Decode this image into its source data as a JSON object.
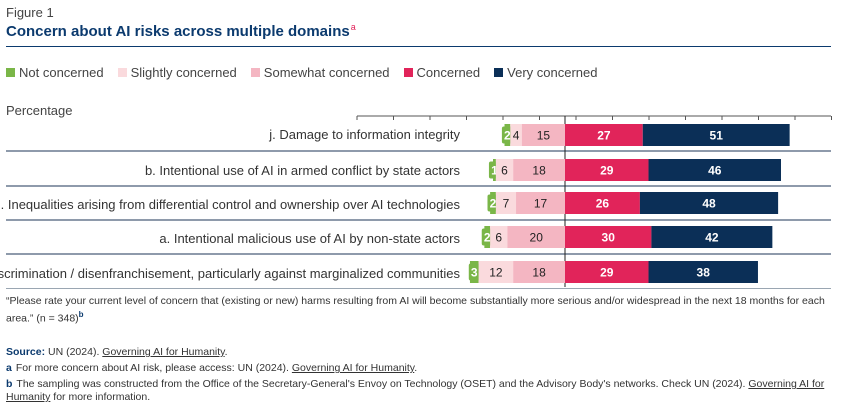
{
  "figure_label": "Figure 1",
  "title": "Concern about AI risks across multiple domains",
  "title_sup": "a",
  "axis_label": "Percentage",
  "legend": [
    {
      "label": "Not concerned",
      "color": "#7ab648"
    },
    {
      "label": "Slightly concerned",
      "color": "#fadadd"
    },
    {
      "label": "Somewhat concerned",
      "color": "#f4b6c2"
    },
    {
      "label": "Concerned",
      "color": "#e1245a"
    },
    {
      "label": "Very concerned",
      "color": "#0b2f57"
    }
  ],
  "chart_data": {
    "type": "bar",
    "orientation": "horizontal-diverging-stacked",
    "title": "Concern about AI risks across multiple domains",
    "ylabel": "Percentage",
    "categories": [
      "j. Damage to information integrity",
      "b. Intentional use of AI in armed conflict by state actors",
      "h. Inequalities arising from differential control and ownership over AI technologies",
      "a. Intentional malicious use of AI by non-state actors",
      "l. Discrimination / disenfranchisement, particularly against marginalized communities"
    ],
    "series": [
      {
        "name": "Not concerned",
        "values": [
          2,
          1,
          2,
          2,
          3
        ]
      },
      {
        "name": "Slightly concerned",
        "values": [
          4,
          6,
          7,
          6,
          12
        ]
      },
      {
        "name": "Somewhat concerned",
        "values": [
          15,
          18,
          17,
          20,
          18
        ]
      },
      {
        "name": "Concerned",
        "values": [
          27,
          29,
          26,
          30,
          29
        ]
      },
      {
        "name": "Very concerned",
        "values": [
          51,
          46,
          48,
          42,
          38
        ]
      }
    ]
  },
  "footnotes": {
    "question": "“Please rate your current level of concern that (existing or new) harms resulting from AI will become substantially more serious and/or widespread in the next 18 months for each area.” (n = 348)",
    "question_sup": "b",
    "source_key": "Source:",
    "source_text": "UN (2024).",
    "source_link": "Governing AI for Humanity",
    "source_end": ".",
    "note_a_key": "a",
    "note_a_text": "For more concern about AI risk, please access: UN (2024).",
    "note_a_link": "Governing AI for Humanity",
    "note_a_end": ".",
    "note_b_key": "b",
    "note_b_text": "The sampling was constructed from the Office of the Secretary-General's Envoy on Technology (OSET) and the Advisory Body's networks. Check UN (2024).",
    "note_b_link": "Governing AI for Humanity",
    "note_b_end": "for more information."
  }
}
